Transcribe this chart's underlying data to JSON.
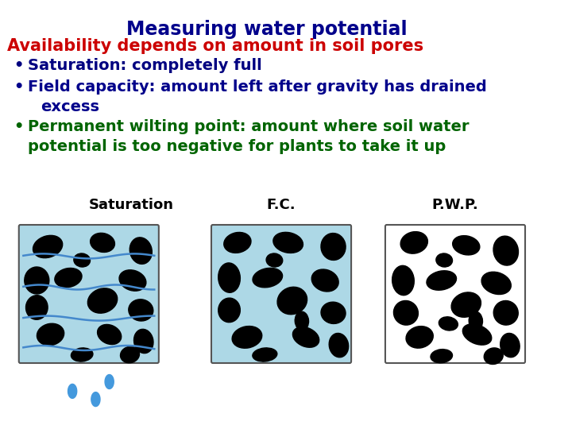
{
  "title": "Measuring water potential",
  "title_color": "#00008B",
  "subtitle": "Availability depends on amount in soil pores",
  "subtitle_color": "#CC0000",
  "bullet1": "Saturation: completely full",
  "bullet1_color": "#000080",
  "bullet2_line1": "Field capacity: amount left after gravity has drained",
  "bullet2_line2": "excess",
  "bullet2_color": "#00008B",
  "bullet3_line1": "Permanent wilting point: amount where soil water",
  "bullet3_line2": "potential is too negative for plants to take it up",
  "bullet3_color": "#006400",
  "label1": "Saturation",
  "label2": "F.C.",
  "label3": "P.W.P.",
  "bg_color": "#FFFFFF",
  "water_color": "#ADD8E6",
  "box_border_color": "#808080"
}
